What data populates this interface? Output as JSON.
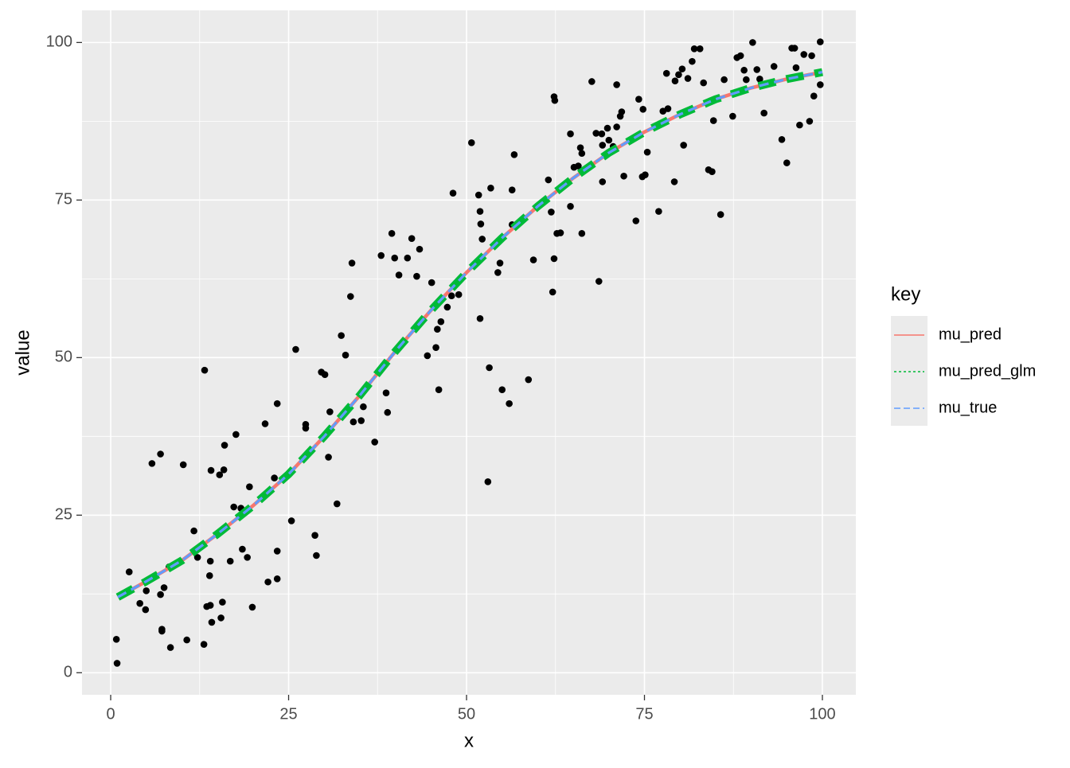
{
  "chart_data": {
    "type": "line",
    "x_label": "x",
    "y_label": "value",
    "xlim": [
      -4.03,
      104.7
    ],
    "ylim": [
      -3.5,
      105.1
    ],
    "xticks": [
      0,
      25,
      50,
      75,
      100
    ],
    "yticks": [
      0,
      25,
      50,
      75,
      100
    ],
    "xminor": [
      12.5,
      37.5,
      62.5,
      87.5
    ],
    "yminor": [
      12.5,
      37.5,
      62.5,
      87.5
    ],
    "grid": true,
    "legend_title": "key",
    "legend_position": "right",
    "x": [
      1,
      5,
      10,
      15,
      20,
      25,
      30,
      35,
      40,
      45,
      50,
      55,
      60,
      65,
      70,
      75,
      80,
      85,
      90,
      95,
      100
    ],
    "series": [
      {
        "name": "mu_pred",
        "color": "#F8766D",
        "linetype": "solid",
        "values": [
          12,
          14.5,
          17.8,
          22,
          26.5,
          31.5,
          37.5,
          44,
          51,
          57.5,
          63.5,
          69,
          74,
          78.5,
          82.5,
          85.8,
          88.6,
          91,
          92.8,
          94.2,
          95.3
        ]
      },
      {
        "name": "mu_pred_glm",
        "color": "#00BA38",
        "linetype": "dotted",
        "values": [
          12,
          14.5,
          17.8,
          22,
          26.5,
          31.5,
          37.5,
          44,
          51,
          57.5,
          63.5,
          69,
          74,
          78.5,
          82.5,
          85.8,
          88.6,
          91,
          92.8,
          94.2,
          95.3
        ]
      },
      {
        "name": "mu_true",
        "color": "#619CFF",
        "linetype": "dashed",
        "values": [
          12,
          14.5,
          17.8,
          22,
          26.5,
          31.5,
          37.5,
          44,
          51,
          57.5,
          63.5,
          69,
          74,
          78.5,
          82.5,
          85.8,
          88.6,
          91,
          92.8,
          94.2,
          95.3
        ]
      }
    ],
    "scatter": {
      "color": "#000000",
      "x": [
        0.8,
        0.9,
        2.6,
        4.1,
        4.9,
        5.0,
        5.8,
        7.0,
        7.0,
        7.2,
        7.2,
        7.5,
        8.4,
        8.2,
        10.2,
        10.7,
        11.7,
        12.2,
        13.1,
        13.2,
        13.5,
        14.0,
        13.9,
        14.0,
        14.1,
        14.2,
        15.3,
        15.5,
        15.7,
        15.9,
        16.0,
        16.8,
        17.3,
        17.6,
        18.3,
        18.5,
        19.2,
        19.5,
        19.9,
        21.7,
        22.1,
        23.0,
        23.4,
        23.4,
        23.4,
        25.4,
        26.0,
        27.4,
        27.4,
        28.7,
        28.9,
        29.6,
        30.1,
        30.6,
        30.8,
        31.8,
        32.4,
        33.0,
        33.7,
        33.9,
        34.1,
        35.2,
        35.5,
        37.1,
        38.0,
        38.7,
        38.9,
        39.5,
        39.9,
        40.5,
        41.7,
        42.3,
        43.0,
        43.4,
        44.5,
        45.1,
        45.7,
        45.9,
        46.1,
        46.4,
        47.3,
        47.9,
        48.1,
        48.9,
        50.7,
        51.7,
        51.9,
        52.0,
        52.2,
        51.9,
        53.0,
        53.2,
        53.4,
        54.4,
        54.7,
        55.0,
        56.0,
        56.4,
        56.4,
        56.7,
        58.7,
        59.4,
        61.5,
        61.9,
        62.1,
        62.3,
        62.3,
        62.4,
        62.7,
        63.2,
        64.6,
        64.6,
        65.1,
        65.7,
        66.0,
        66.2,
        66.2,
        67.6,
        68.2,
        68.6,
        69.0,
        69.1,
        69.1,
        69.8,
        70.0,
        70.6,
        71.1,
        71.1,
        71.6,
        71.8,
        72.1,
        73.8,
        74.2,
        74.7,
        74.8,
        75.1,
        75.4,
        77.0,
        77.6,
        78.1,
        78.3,
        79.2,
        79.3,
        79.8,
        80.3,
        80.5,
        81.1,
        81.7,
        82.0,
        82.8,
        83.3,
        84.0,
        84.5,
        84.7,
        85.7,
        86.2,
        87.4,
        88.0,
        88.5,
        89.0,
        89.3,
        90.2,
        90.8,
        91.2,
        91.8,
        93.2,
        94.3,
        95.0,
        95.7,
        96.1,
        96.3,
        96.8,
        97.4,
        98.2,
        98.5,
        98.8,
        99.7,
        99.7
      ],
      "y": [
        5.3,
        1.5,
        16.0,
        11.0,
        10.0,
        13.0,
        33.2,
        34.7,
        12.4,
        6.9,
        6.6,
        13.5,
        4.0,
        16.8,
        33.0,
        5.2,
        22.5,
        18.3,
        4.5,
        48.0,
        10.5,
        10.7,
        15.4,
        17.7,
        32.1,
        8.0,
        31.4,
        8.7,
        11.2,
        32.2,
        36.1,
        17.7,
        26.3,
        37.8,
        26.1,
        19.6,
        18.3,
        29.5,
        10.4,
        39.5,
        14.4,
        30.9,
        19.3,
        42.7,
        14.9,
        24.1,
        51.3,
        39.4,
        38.8,
        21.8,
        18.6,
        47.7,
        47.3,
        34.2,
        41.4,
        26.8,
        53.5,
        50.4,
        59.7,
        65.0,
        39.8,
        40.0,
        42.2,
        36.6,
        66.2,
        44.4,
        41.3,
        69.7,
        65.8,
        63.1,
        65.8,
        68.9,
        62.9,
        67.2,
        50.3,
        61.9,
        51.6,
        54.5,
        44.9,
        55.7,
        58.0,
        59.8,
        76.1,
        60.0,
        84.1,
        75.8,
        73.2,
        71.2,
        68.8,
        56.2,
        30.3,
        48.4,
        76.9,
        63.5,
        65.0,
        44.9,
        42.7,
        71.1,
        76.6,
        82.2,
        46.5,
        65.5,
        78.2,
        73.1,
        60.4,
        65.7,
        91.4,
        90.8,
        69.7,
        69.8,
        85.5,
        74.0,
        80.2,
        80.4,
        83.3,
        82.4,
        69.7,
        93.8,
        85.6,
        62.1,
        85.5,
        83.7,
        77.9,
        86.4,
        84.5,
        83.5,
        86.6,
        93.3,
        88.3,
        89.0,
        78.8,
        71.7,
        91.0,
        78.7,
        89.4,
        79.0,
        82.6,
        73.2,
        89.1,
        95.1,
        89.5,
        77.9,
        93.9,
        94.9,
        95.8,
        83.7,
        94.3,
        97.0,
        99.0,
        99.0,
        93.6,
        79.8,
        79.5,
        87.6,
        72.7,
        94.1,
        88.3,
        97.6,
        97.9,
        95.6,
        94.1,
        100.0,
        95.7,
        94.2,
        88.8,
        96.2,
        84.6,
        80.9,
        99.1,
        99.1,
        96.0,
        86.9,
        98.1,
        87.5,
        97.9,
        91.5,
        100.1,
        93.3
      ]
    }
  }
}
